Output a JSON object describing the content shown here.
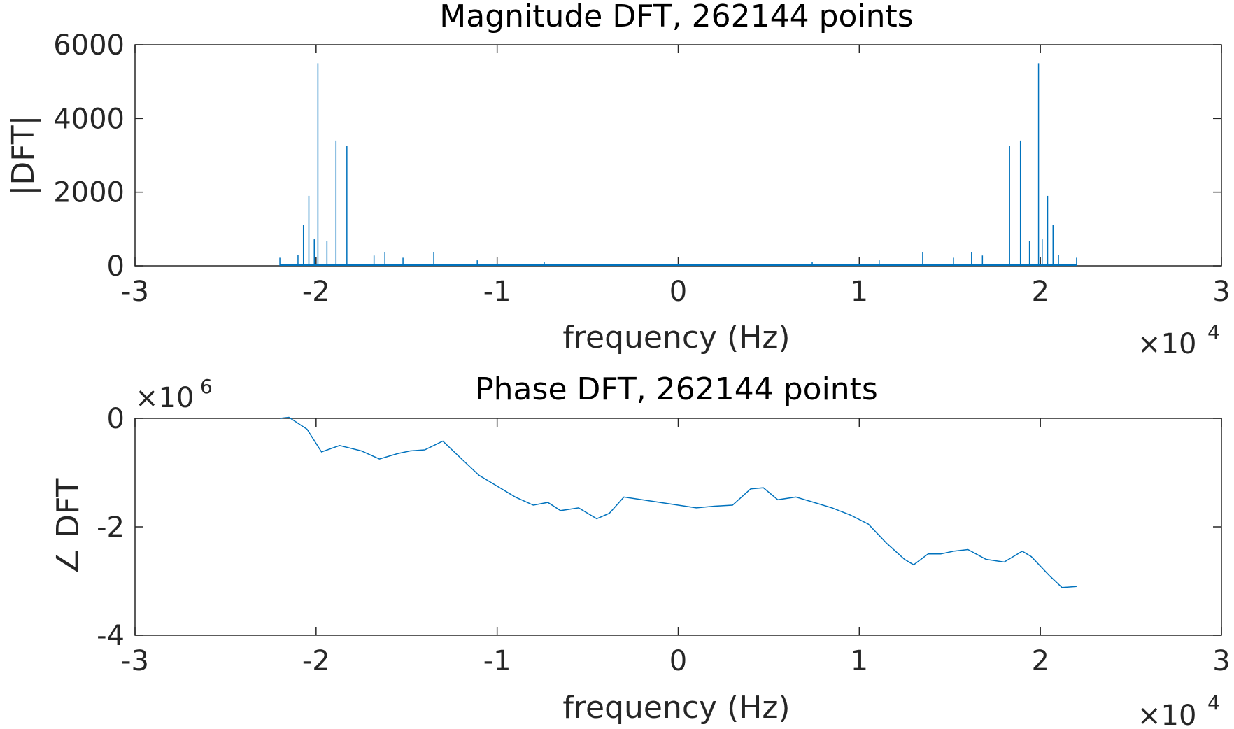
{
  "chart_data": [
    {
      "type": "line",
      "title": "Magnitude DFT, 262144 points",
      "xlabel": "frequency (Hz)",
      "ylabel": "|DFT|",
      "x_exponent": "4",
      "y_exponent": "",
      "xlim": [
        -3,
        3
      ],
      "ylim": [
        0,
        6000
      ],
      "xticks": [
        "-3",
        "-2",
        "-1",
        "0",
        "1",
        "2",
        "3"
      ],
      "yticks": [
        "0",
        "2000",
        "4000",
        "6000"
      ],
      "x_tick_values": [
        -3,
        -2,
        -1,
        0,
        1,
        2,
        3
      ],
      "y_tick_values": [
        0,
        2000,
        4000,
        6000
      ],
      "grid": false,
      "color": "#0072bd",
      "series": [
        {
          "x": [
            -2.2,
            -2.1,
            -2.07,
            -2.04,
            -2.01,
            -1.99,
            -1.94,
            -1.89,
            -1.83,
            -1.68,
            -1.62,
            -1.52,
            -1.35,
            -1.11,
            -0.74,
            0.74,
            1.11,
            1.35,
            1.52,
            1.62,
            1.68,
            1.83,
            1.89,
            1.94,
            1.99,
            2.01,
            2.04,
            2.07,
            2.1,
            2.2
          ],
          "values": [
            220,
            300,
            1120,
            1900,
            720,
            5500,
            680,
            3400,
            3250,
            280,
            380,
            220,
            380,
            150,
            110,
            110,
            150,
            380,
            220,
            380,
            280,
            3250,
            3400,
            680,
            5500,
            720,
            1900,
            1120,
            300,
            220
          ]
        }
      ]
    },
    {
      "type": "line",
      "title": "Phase DFT, 262144 points",
      "xlabel": "frequency (Hz)",
      "ylabel": "∠ DFT",
      "x_exponent": "4",
      "y_exponent": "6",
      "xlim": [
        -3,
        3
      ],
      "ylim": [
        -4,
        0
      ],
      "xticks": [
        "-3",
        "-2",
        "-1",
        "0",
        "1",
        "2",
        "3"
      ],
      "yticks": [
        "-4",
        "-2",
        "0"
      ],
      "x_tick_values": [
        -3,
        -2,
        -1,
        0,
        1,
        2,
        3
      ],
      "y_tick_values": [
        -4,
        -2,
        0
      ],
      "grid": false,
      "color": "#0072bd",
      "series": [
        {
          "x": [
            -2.2,
            -2.15,
            -2.05,
            -1.97,
            -1.87,
            -1.75,
            -1.65,
            -1.55,
            -1.48,
            -1.4,
            -1.3,
            -1.18,
            -1.1,
            -1.0,
            -0.9,
            -0.8,
            -0.72,
            -0.65,
            -0.55,
            -0.45,
            -0.38,
            -0.3,
            -0.2,
            -0.1,
            0.0,
            0.1,
            0.2,
            0.3,
            0.4,
            0.47,
            0.55,
            0.65,
            0.75,
            0.85,
            0.95,
            1.05,
            1.15,
            1.25,
            1.3,
            1.38,
            1.45,
            1.52,
            1.6,
            1.7,
            1.8,
            1.9,
            1.95,
            2.05,
            2.12,
            2.2
          ],
          "values": [
            0.0,
            0.02,
            -0.2,
            -0.62,
            -0.5,
            -0.6,
            -0.75,
            -0.65,
            -0.6,
            -0.58,
            -0.42,
            -0.8,
            -1.05,
            -1.25,
            -1.45,
            -1.6,
            -1.55,
            -1.7,
            -1.65,
            -1.85,
            -1.75,
            -1.45,
            -1.5,
            -1.55,
            -1.6,
            -1.65,
            -1.62,
            -1.6,
            -1.3,
            -1.28,
            -1.5,
            -1.45,
            -1.55,
            -1.65,
            -1.78,
            -1.95,
            -2.3,
            -2.6,
            -2.7,
            -2.5,
            -2.5,
            -2.45,
            -2.42,
            -2.6,
            -2.65,
            -2.45,
            -2.55,
            -2.9,
            -3.12,
            -3.1
          ]
        }
      ]
    }
  ]
}
